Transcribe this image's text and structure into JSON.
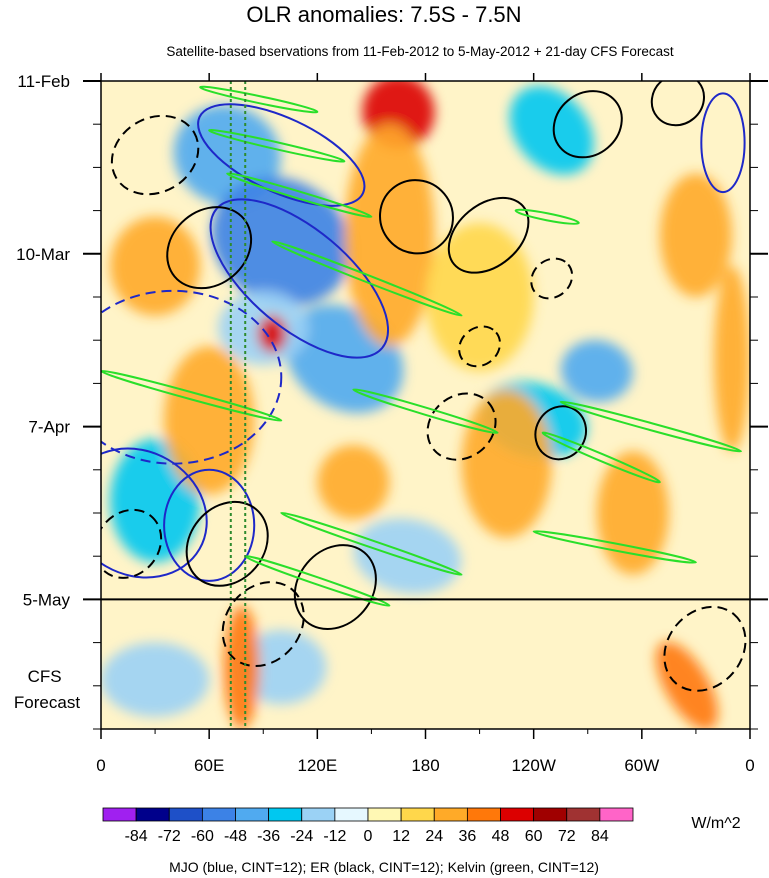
{
  "chart_data": {
    "type": "heatmap",
    "title": "OLR anomalies: 7.5S - 7.5N",
    "subtitle": "Satellite-based bservations from 11-Feb-2012 to 5-May-2012 + 21-day CFS Forecast",
    "x_tick_labels": [
      "0",
      "60E",
      "120E",
      "180",
      "120W",
      "60W",
      "0"
    ],
    "x_tick_lon": [
      0,
      60,
      120,
      180,
      240,
      300,
      360
    ],
    "x_range_lon": [
      0,
      360
    ],
    "y_tick_labels": [
      "11-Feb",
      "10-Mar",
      "7-Apr",
      "5-May"
    ],
    "y_tick_day": [
      0,
      28,
      56,
      84
    ],
    "y_range_day": [
      0,
      105
    ],
    "observation_end_day": 84,
    "forecast_label": "CFS\nForecast",
    "colorbar": {
      "unit": "W/m^2",
      "tick_labels": [
        "-84",
        "-72",
        "-60",
        "-48",
        "-36",
        "-24",
        "-12",
        "0",
        "12",
        "24",
        "36",
        "48",
        "60",
        "72",
        "84"
      ],
      "colors": [
        "#a020f0",
        "#00008b",
        "#1e50c8",
        "#3c82e6",
        "#50aaf0",
        "#00c8f0",
        "#9bd2f5",
        "#e6f8ff",
        "#fff8b4",
        "#ffd74b",
        "#ffaa28",
        "#ff780a",
        "#dc0000",
        "#a00000",
        "#a03232",
        "#ff64c8"
      ]
    },
    "contour_legend": "MJO (blue, CINT=12); ER (black, CINT=12); Kelvin (green, CINT=12)",
    "series_colors": {
      "mjo": "#1e28c8",
      "er": "#000000",
      "kelvin": "#2adf2a",
      "reference_lines": "#2e8b2e"
    },
    "reference_lines_lon": [
      72,
      80
    ],
    "grid": false,
    "anomaly_features": [
      {
        "lon": 70,
        "day": 12,
        "value": -48,
        "rx": 30,
        "ry": 8,
        "rot": 20
      },
      {
        "lon": 100,
        "day": 26,
        "value": -60,
        "rx": 40,
        "ry": 10,
        "rot": 30
      },
      {
        "lon": 135,
        "day": 45,
        "value": -48,
        "rx": 35,
        "ry": 8,
        "rot": 35
      },
      {
        "lon": 90,
        "day": 40,
        "value": -24,
        "rx": 25,
        "ry": 6,
        "rot": 0
      },
      {
        "lon": 30,
        "day": 68,
        "value": -36,
        "rx": 25,
        "ry": 10,
        "rot": 0
      },
      {
        "lon": 240,
        "day": 55,
        "value": -36,
        "rx": 30,
        "ry": 6,
        "rot": 15
      },
      {
        "lon": 275,
        "day": 47,
        "value": -48,
        "rx": 20,
        "ry": 5,
        "rot": 10
      },
      {
        "lon": 250,
        "day": 8,
        "value": -36,
        "rx": 20,
        "ry": 8,
        "rot": -40
      },
      {
        "lon": 170,
        "day": 77,
        "value": -24,
        "rx": 30,
        "ry": 6,
        "rot": 10
      },
      {
        "lon": 30,
        "day": 97,
        "value": -24,
        "rx": 30,
        "ry": 6,
        "rot": 0
      },
      {
        "lon": 100,
        "day": 95,
        "value": -24,
        "rx": 25,
        "ry": 6,
        "rot": 0
      },
      {
        "lon": 165,
        "day": 5,
        "value": 48,
        "rx": 20,
        "ry": 6,
        "rot": -20
      },
      {
        "lon": 160,
        "day": 25,
        "value": 24,
        "rx": 25,
        "ry": 18,
        "rot": 0
      },
      {
        "lon": 95,
        "day": 41,
        "value": 48,
        "rx": 8,
        "ry": 3,
        "rot": 0
      },
      {
        "lon": 60,
        "day": 55,
        "value": 24,
        "rx": 25,
        "ry": 12,
        "rot": 0
      },
      {
        "lon": 30,
        "day": 30,
        "value": 24,
        "rx": 25,
        "ry": 8,
        "rot": 0
      },
      {
        "lon": 78,
        "day": 95,
        "value": 36,
        "rx": 10,
        "ry": 10,
        "rot": 0
      },
      {
        "lon": 325,
        "day": 98,
        "value": 36,
        "rx": 12,
        "ry": 8,
        "rot": -30
      },
      {
        "lon": 225,
        "day": 62,
        "value": 24,
        "rx": 25,
        "ry": 12,
        "rot": 0
      },
      {
        "lon": 295,
        "day": 70,
        "value": 24,
        "rx": 20,
        "ry": 10,
        "rot": 0
      },
      {
        "lon": 330,
        "day": 25,
        "value": 24,
        "rx": 20,
        "ry": 10,
        "rot": 0
      },
      {
        "lon": 350,
        "day": 45,
        "value": 24,
        "rx": 10,
        "ry": 15,
        "rot": 0
      },
      {
        "lon": 210,
        "day": 35,
        "value": 12,
        "rx": 30,
        "ry": 12,
        "rot": 0
      },
      {
        "lon": 140,
        "day": 65,
        "value": 24,
        "rx": 20,
        "ry": 6,
        "rot": 0
      }
    ],
    "kelvin_contours": [
      {
        "lon1": 55,
        "day1": 1,
        "lon2": 120,
        "day2": 5
      },
      {
        "lon1": 60,
        "day1": 8,
        "lon2": 135,
        "day2": 13
      },
      {
        "lon1": 70,
        "day1": 15,
        "lon2": 150,
        "day2": 22
      },
      {
        "lon1": 95,
        "day1": 26,
        "lon2": 200,
        "day2": 38
      },
      {
        "lon1": 0,
        "day1": 47,
        "lon2": 100,
        "day2": 55
      },
      {
        "lon1": 140,
        "day1": 50,
        "lon2": 220,
        "day2": 57
      },
      {
        "lon1": 245,
        "day1": 57,
        "lon2": 310,
        "day2": 65
      },
      {
        "lon1": 255,
        "day1": 52,
        "lon2": 355,
        "day2": 60
      },
      {
        "lon1": 100,
        "day1": 70,
        "lon2": 200,
        "day2": 80
      },
      {
        "lon1": 80,
        "day1": 77,
        "lon2": 160,
        "day2": 85
      },
      {
        "lon1": 240,
        "day1": 73,
        "lon2": 330,
        "day2": 78
      },
      {
        "lon1": 230,
        "day1": 21,
        "lon2": 265,
        "day2": 23
      }
    ],
    "mjo_contours": [
      {
        "lon": 110,
        "day": 32,
        "rx": 60,
        "ry": 8,
        "rot": 40,
        "dash": false
      },
      {
        "lon": 100,
        "day": 12,
        "rx": 50,
        "ry": 6,
        "rot": 25,
        "dash": false
      },
      {
        "lon": 40,
        "day": 48,
        "rx": 60,
        "ry": 14,
        "rot": 0,
        "dash": true
      },
      {
        "lon": 60,
        "day": 72,
        "rx": 25,
        "ry": 9,
        "rot": 0,
        "dash": false
      },
      {
        "lon": 345,
        "day": 10,
        "rx": 12,
        "ry": 8,
        "rot": 0,
        "dash": false
      },
      {
        "lon": 20,
        "day": 70,
        "rx": 40,
        "ry": 10,
        "rot": 30,
        "dash": false
      }
    ],
    "er_contours": [
      {
        "lon": 30,
        "day": 12,
        "rx": 25,
        "ry": 6,
        "rot": -30,
        "dash": true
      },
      {
        "lon": 175,
        "day": 22,
        "rx": 20,
        "ry": 6,
        "rot": -40,
        "dash": false
      },
      {
        "lon": 215,
        "day": 25,
        "rx": 25,
        "ry": 5,
        "rot": -40,
        "dash": false
      },
      {
        "lon": 270,
        "day": 7,
        "rx": 20,
        "ry": 5,
        "rot": -40,
        "dash": false
      },
      {
        "lon": 320,
        "day": 3,
        "rx": 15,
        "ry": 4,
        "rot": -40,
        "dash": false
      },
      {
        "lon": 60,
        "day": 27,
        "rx": 25,
        "ry": 6,
        "rot": -40,
        "dash": false
      },
      {
        "lon": 200,
        "day": 56,
        "rx": 20,
        "ry": 5,
        "rot": -40,
        "dash": true
      },
      {
        "lon": 255,
        "day": 57,
        "rx": 15,
        "ry": 4,
        "rot": -60,
        "dash": false
      },
      {
        "lon": 250,
        "day": 32,
        "rx": 12,
        "ry": 3,
        "rot": -40,
        "dash": true
      },
      {
        "lon": 210,
        "day": 43,
        "rx": 12,
        "ry": 3,
        "rot": -40,
        "dash": true
      },
      {
        "lon": 70,
        "day": 75,
        "rx": 25,
        "ry": 6,
        "rot": -50,
        "dash": false
      },
      {
        "lon": 90,
        "day": 88,
        "rx": 25,
        "ry": 6,
        "rot": -50,
        "dash": true
      },
      {
        "lon": 130,
        "day": 82,
        "rx": 25,
        "ry": 6,
        "rot": -50,
        "dash": false
      },
      {
        "lon": 15,
        "day": 75,
        "rx": 20,
        "ry": 5,
        "rot": -50,
        "dash": true
      },
      {
        "lon": 335,
        "day": 92,
        "rx": 25,
        "ry": 6,
        "rot": -50,
        "dash": true
      }
    ]
  }
}
